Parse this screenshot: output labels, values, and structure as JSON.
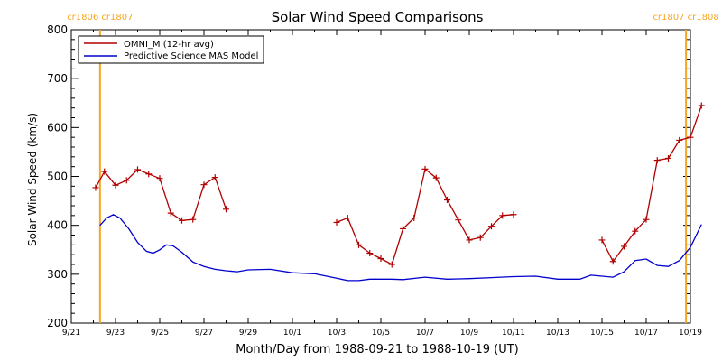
{
  "chart_data": {
    "type": "line",
    "title": "Solar Wind Speed Comparisons",
    "xlabel": "Month/Day from 1988-09-21 to 1988-10-19 (UT)",
    "ylabel": "Solar Wind Speed (km/s)",
    "xlim": [
      "1988-09-21",
      "1988-10-19"
    ],
    "ylim": [
      200,
      800
    ],
    "grid": false,
    "legend_position": "top-left",
    "x_tick_labels": [
      "9/21",
      "9/23",
      "9/25",
      "9/27",
      "9/29",
      "10/1",
      "10/3",
      "10/5",
      "10/7",
      "10/9",
      "10/11",
      "10/13",
      "10/15",
      "10/17",
      "10/19"
    ],
    "x_tick_days": [
      0,
      2,
      4,
      6,
      8,
      10,
      12,
      14,
      16,
      18,
      20,
      22,
      24,
      26,
      28
    ],
    "y_ticks": [
      200,
      300,
      400,
      500,
      600,
      700,
      800
    ],
    "markers": [
      {
        "day": 1.3,
        "label_left": "cr1806",
        "label_right": "cr1807",
        "color": "#f5a623"
      },
      {
        "day": 27.8,
        "label_left": "cr1807",
        "label_right": "cr1808",
        "color": "#f5a623"
      }
    ],
    "series": [
      {
        "name": "OMNI_M (12-hr avg)",
        "color": "#b00000",
        "marker": "+",
        "segments": [
          [
            [
              1.1,
              477
            ],
            [
              1.5,
              510
            ],
            [
              2.0,
              482
            ],
            [
              2.5,
              492
            ],
            [
              3.0,
              514
            ],
            [
              3.5,
              505
            ],
            [
              4.0,
              496
            ],
            [
              4.5,
              425
            ],
            [
              5.0,
              410
            ],
            [
              5.5,
              412
            ],
            [
              6.0,
              483
            ],
            [
              6.5,
              498
            ],
            [
              7.0,
              433
            ]
          ],
          [
            [
              12.0,
              406
            ],
            [
              12.5,
              415
            ],
            [
              13.0,
              360
            ],
            [
              13.5,
              343
            ],
            [
              14.0,
              332
            ],
            [
              14.5,
              320
            ],
            [
              15.0,
              393
            ],
            [
              15.5,
              415
            ],
            [
              16.0,
              515
            ],
            [
              16.5,
              497
            ],
            [
              17.0,
              452
            ],
            [
              17.5,
              411
            ],
            [
              18.0,
              370
            ],
            [
              18.5,
              375
            ],
            [
              19.0,
              398
            ],
            [
              19.5,
              420
            ],
            [
              20.0,
              422
            ]
          ],
          [
            [
              24.0,
              370
            ],
            [
              24.5,
              326
            ],
            [
              25.0,
              357
            ],
            [
              25.5,
              388
            ],
            [
              26.0,
              412
            ],
            [
              26.5,
              533
            ],
            [
              27.0,
              537
            ],
            [
              27.5,
              574
            ],
            [
              28.0,
              580
            ],
            [
              28.5,
              645
            ]
          ]
        ]
      },
      {
        "name": "Predictive Science MAS Model",
        "color": "#0000cc",
        "marker": "none",
        "segments": [
          [
            [
              1.3,
              400
            ],
            [
              1.6,
              415
            ],
            [
              1.9,
              422
            ],
            [
              2.2,
              415
            ],
            [
              2.6,
              393
            ],
            [
              3.0,
              365
            ],
            [
              3.4,
              347
            ],
            [
              3.7,
              343
            ],
            [
              4.0,
              350
            ],
            [
              4.3,
              360
            ],
            [
              4.6,
              358
            ],
            [
              5.0,
              345
            ],
            [
              5.5,
              325
            ],
            [
              6.0,
              316
            ],
            [
              6.5,
              310
            ],
            [
              7.0,
              307
            ],
            [
              7.5,
              305
            ],
            [
              8.0,
              309
            ],
            [
              9.0,
              310
            ],
            [
              10.0,
              303
            ],
            [
              11.0,
              301
            ],
            [
              12.0,
              292
            ],
            [
              12.5,
              287
            ],
            [
              13.0,
              287
            ],
            [
              13.5,
              290
            ],
            [
              14.0,
              290
            ],
            [
              14.5,
              290
            ],
            [
              15.0,
              289
            ],
            [
              16.0,
              294
            ],
            [
              17.0,
              290
            ],
            [
              18.0,
              291
            ],
            [
              19.0,
              293
            ],
            [
              20.0,
              295
            ],
            [
              21.0,
              296
            ],
            [
              22.0,
              290
            ],
            [
              23.0,
              290
            ],
            [
              23.5,
              298
            ],
            [
              24.0,
              296
            ],
            [
              24.5,
              294
            ],
            [
              25.0,
              305
            ],
            [
              25.5,
              328
            ],
            [
              26.0,
              331
            ],
            [
              26.5,
              318
            ],
            [
              27.0,
              316
            ],
            [
              27.5,
              328
            ],
            [
              28.0,
              355
            ],
            [
              28.5,
              402
            ]
          ]
        ]
      }
    ]
  }
}
